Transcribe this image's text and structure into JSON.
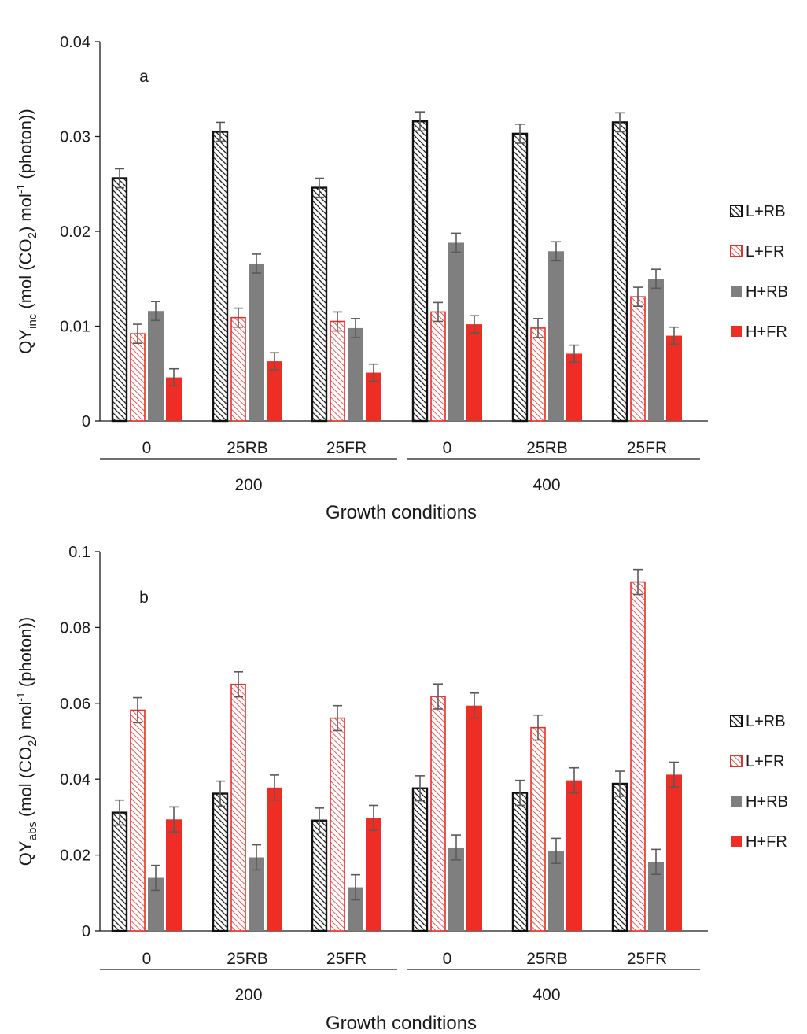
{
  "chart_data": [
    {
      "type": "bar",
      "panel_label": "a",
      "ylabel": {
        "main": "QY",
        "sub": "inc",
        "rest1": " (mol (CO",
        "sub2": "2",
        "rest2": ") mol",
        "sup": "-1",
        "rest3": " (photon))"
      },
      "xlabel": "Growth conditions",
      "ylim": [
        0,
        0.04
      ],
      "yticks": [
        "0",
        "0.01",
        "0.02",
        "0.03",
        "0.04"
      ],
      "ytick_values": [
        0,
        0.01,
        0.02,
        0.03,
        0.04
      ],
      "categories": [
        "0",
        "25RB",
        "25FR",
        "0",
        "25RB",
        "25FR"
      ],
      "groups": [
        "200",
        "400"
      ],
      "series": [
        {
          "name": "L+RB",
          "values": [
            0.0256,
            0.0305,
            0.0246,
            0.0316,
            0.0303,
            0.0315
          ],
          "errors": [
            0.001,
            0.001,
            0.001,
            0.001,
            0.001,
            0.001
          ]
        },
        {
          "name": "L+FR",
          "values": [
            0.0092,
            0.0109,
            0.0105,
            0.0115,
            0.0098,
            0.0131
          ],
          "errors": [
            0.001,
            0.001,
            0.001,
            0.001,
            0.001,
            0.001
          ]
        },
        {
          "name": "H+RB",
          "values": [
            0.0116,
            0.0166,
            0.0098,
            0.0188,
            0.0179,
            0.015
          ],
          "errors": [
            0.001,
            0.001,
            0.001,
            0.001,
            0.001,
            0.001
          ]
        },
        {
          "name": "H+FR",
          "values": [
            0.0046,
            0.0063,
            0.0051,
            0.0102,
            0.0071,
            0.009
          ],
          "errors": [
            0.0009,
            0.0009,
            0.0009,
            0.0009,
            0.0009,
            0.0009
          ]
        }
      ],
      "legend_position": "right"
    },
    {
      "type": "bar",
      "panel_label": "b",
      "ylabel": {
        "main": "QY",
        "sub": "abs",
        "rest1": " (mol (CO",
        "sub2": "2",
        "rest2": ") mol",
        "sup": "-1",
        "rest3": " (photon))"
      },
      "xlabel": "Growth conditions",
      "ylim": [
        0,
        0.1
      ],
      "yticks": [
        "0",
        "0.02",
        "0.04",
        "0.06",
        "0.08",
        "0.1"
      ],
      "ytick_values": [
        0,
        0.02,
        0.04,
        0.06,
        0.08,
        0.1
      ],
      "categories": [
        "0",
        "25RB",
        "25FR",
        "0",
        "25RB",
        "25FR"
      ],
      "groups": [
        "200",
        "400"
      ],
      "series": [
        {
          "name": "L+RB",
          "values": [
            0.0312,
            0.0362,
            0.0291,
            0.0376,
            0.0364,
            0.0388
          ],
          "errors": [
            0.0033,
            0.0033,
            0.0033,
            0.0033,
            0.0033,
            0.0033
          ]
        },
        {
          "name": "L+FR",
          "values": [
            0.0582,
            0.065,
            0.0561,
            0.0618,
            0.0536,
            0.092
          ],
          "errors": [
            0.0033,
            0.0033,
            0.0033,
            0.0033,
            0.0033,
            0.0033
          ]
        },
        {
          "name": "H+RB",
          "values": [
            0.014,
            0.0194,
            0.0115,
            0.022,
            0.0211,
            0.0182
          ],
          "errors": [
            0.0033,
            0.0033,
            0.0033,
            0.0033,
            0.0033,
            0.0033
          ]
        },
        {
          "name": "H+FR",
          "values": [
            0.0294,
            0.0378,
            0.0298,
            0.0594,
            0.0397,
            0.0412
          ],
          "errors": [
            0.0033,
            0.0033,
            0.0033,
            0.0033,
            0.0033,
            0.0033
          ]
        }
      ],
      "legend_position": "right"
    }
  ],
  "colors": {
    "L+RB": {
      "fill": "#ffffff",
      "stroke": "#111111",
      "hatch": "#111111"
    },
    "L+FR": {
      "fill": "#ffffff",
      "stroke": "#e8302a",
      "hatch": "#e8302a"
    },
    "H+RB": {
      "fill": "#7f7f7f",
      "stroke": "#7f7f7f"
    },
    "H+FR": {
      "fill": "#ee2d24",
      "stroke": "#ee2d24"
    },
    "axis": "#1a1a1a",
    "errorbar": "#5a5a5a"
  }
}
